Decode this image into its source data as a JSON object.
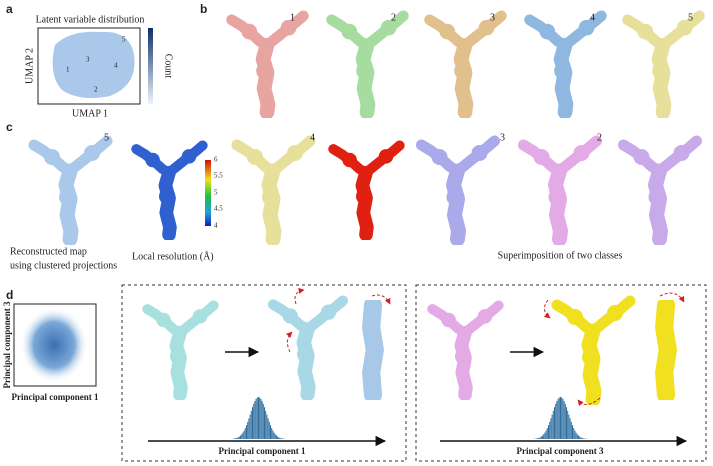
{
  "panels": {
    "a": {
      "label": "a",
      "title": "Latent variable distribution",
      "x_axis": "UMAP 1",
      "y_axis": "UMAP 2",
      "colorbar_label": "Count",
      "clusters": [
        "1",
        "2",
        "3",
        "4",
        "5"
      ]
    },
    "b": {
      "label": "b",
      "classes": [
        "1",
        "2",
        "3",
        "4",
        "5"
      ]
    },
    "c": {
      "label": "c",
      "classes": [
        "5",
        "4",
        "3",
        "2"
      ],
      "colorbar_ticks": [
        "6",
        "5.5",
        "5",
        "4.5",
        "4"
      ],
      "caption_reconstructed": [
        "Reconstructed map",
        "using clustered projections"
      ],
      "caption_resolution": "Local resolution (Å)",
      "caption_superimposition": "Superimposition of two classes"
    },
    "d": {
      "label": "d",
      "scatter_y_axis": "Principal component 3",
      "scatter_x_axis": "Principal component 1",
      "box_1_axis": "Principal component 1",
      "box_2_axis": "Principal component 3"
    }
  }
}
